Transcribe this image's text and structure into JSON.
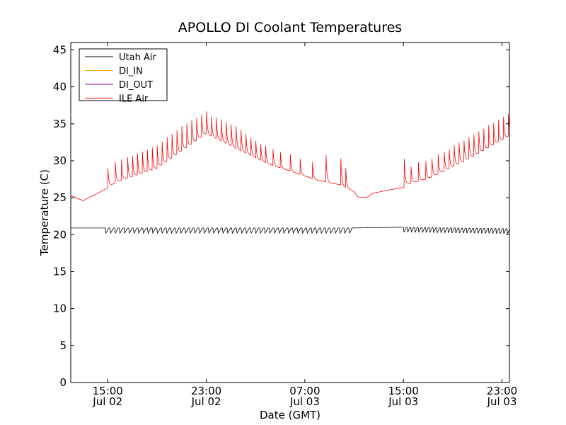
{
  "chart_data": {
    "type": "line",
    "title": "APOLLO DI Coolant Temperatures",
    "xlabel": "Date (GMT)",
    "ylabel": "Temperature (C)",
    "xlim_hours": [
      12.0,
      47.6
    ],
    "ylim": [
      0,
      46
    ],
    "grid": false,
    "legend_placement": "top-left",
    "x_ticks": [
      {
        "hour": 15,
        "time": "15:00",
        "date": "Jul 02"
      },
      {
        "hour": 23,
        "time": "23:00",
        "date": "Jul 02"
      },
      {
        "hour": 31,
        "time": "07:00",
        "date": "Jul 03"
      },
      {
        "hour": 39,
        "time": "15:00",
        "date": "Jul 03"
      },
      {
        "hour": 47,
        "time": "23:00",
        "date": "Jul 03"
      }
    ],
    "y_ticks": [
      0,
      5,
      10,
      15,
      20,
      25,
      30,
      35,
      40,
      45
    ],
    "series": [
      {
        "name": "Utah Air",
        "color": "#000000",
        "base_points": [
          [
            12.0,
            20.9
          ],
          [
            15.0,
            20.9
          ],
          [
            34.5,
            20.9
          ],
          [
            39.0,
            21.0
          ],
          [
            47.6,
            20.8
          ]
        ],
        "cycle_start_hour": 14.8,
        "cycle_end_hour": 34.8,
        "cycle_period_hours": 0.38,
        "cycle_drop": 0.7,
        "cycle2_start_hour": 39.0,
        "cycle2_end_hour": 47.6,
        "cycle2_period_hours": 0.3
      },
      {
        "name": "DI_IN",
        "color": "#ffa500",
        "hidden_behind": "ILE Air"
      },
      {
        "name": "DI_OUT",
        "color": "#800080",
        "hidden_behind": "ILE Air"
      },
      {
        "name": "ILE Air",
        "color": "#ff0000",
        "base_points": [
          [
            12.0,
            25.3
          ],
          [
            13.0,
            24.6
          ],
          [
            15.0,
            26.3
          ],
          [
            15.1,
            26.6
          ],
          [
            16.0,
            27.3
          ],
          [
            19.0,
            29.0
          ],
          [
            23.0,
            33.7
          ],
          [
            26.0,
            31.2
          ],
          [
            28.0,
            29.6
          ],
          [
            30.0,
            28.5
          ],
          [
            32.0,
            27.4
          ],
          [
            34.0,
            26.7
          ],
          [
            35.0,
            25.8
          ],
          [
            35.3,
            25.1
          ],
          [
            36.0,
            25.0
          ],
          [
            36.5,
            25.6
          ],
          [
            38.0,
            26.1
          ],
          [
            39.0,
            26.4
          ],
          [
            39.1,
            26.8
          ],
          [
            41.0,
            27.6
          ],
          [
            44.0,
            30.0
          ],
          [
            47.6,
            33.4
          ]
        ],
        "spikes": [
          [
            15.0,
            2.6
          ],
          [
            15.6,
            2.8
          ],
          [
            16.1,
            2.8
          ],
          [
            16.6,
            2.8
          ],
          [
            17.0,
            2.8
          ],
          [
            17.4,
            2.9
          ],
          [
            17.8,
            2.9
          ],
          [
            18.2,
            2.9
          ],
          [
            18.6,
            3.0
          ],
          [
            19.0,
            3.0
          ],
          [
            19.4,
            3.1
          ],
          [
            19.8,
            3.2
          ],
          [
            20.2,
            3.2
          ],
          [
            20.6,
            3.2
          ],
          [
            21.0,
            3.3
          ],
          [
            21.4,
            3.2
          ],
          [
            21.8,
            3.2
          ],
          [
            22.2,
            3.0
          ],
          [
            22.6,
            3.0
          ],
          [
            23.0,
            3.0
          ],
          [
            23.4,
            2.6
          ],
          [
            23.8,
            2.8
          ],
          [
            24.2,
            2.9
          ],
          [
            24.6,
            2.9
          ],
          [
            25.0,
            2.9
          ],
          [
            25.4,
            3.0
          ],
          [
            25.8,
            2.8
          ],
          [
            26.2,
            2.6
          ],
          [
            26.6,
            2.4
          ],
          [
            27.0,
            2.3
          ],
          [
            27.4,
            2.2
          ],
          [
            27.8,
            2.3
          ],
          [
            28.4,
            2.2
          ],
          [
            29.0,
            2.1
          ],
          [
            29.8,
            2.3
          ],
          [
            30.6,
            2.1
          ],
          [
            31.6,
            2.2
          ],
          [
            32.7,
            3.6
          ],
          [
            33.9,
            3.6
          ],
          [
            34.3,
            2.6
          ],
          [
            39.05,
            3.6
          ],
          [
            39.6,
            2.2
          ],
          [
            40.2,
            2.5
          ],
          [
            40.8,
            2.4
          ],
          [
            41.3,
            2.4
          ],
          [
            41.8,
            2.6
          ],
          [
            42.3,
            2.5
          ],
          [
            42.7,
            2.5
          ],
          [
            43.1,
            2.8
          ],
          [
            43.5,
            2.8
          ],
          [
            43.9,
            2.8
          ],
          [
            44.3,
            2.9
          ],
          [
            44.7,
            2.9
          ],
          [
            45.1,
            2.9
          ],
          [
            45.5,
            2.9
          ],
          [
            45.9,
            3.0
          ],
          [
            46.3,
            2.9
          ],
          [
            46.7,
            3.0
          ],
          [
            47.1,
            3.0
          ],
          [
            47.5,
            3.0
          ]
        ]
      }
    ]
  }
}
